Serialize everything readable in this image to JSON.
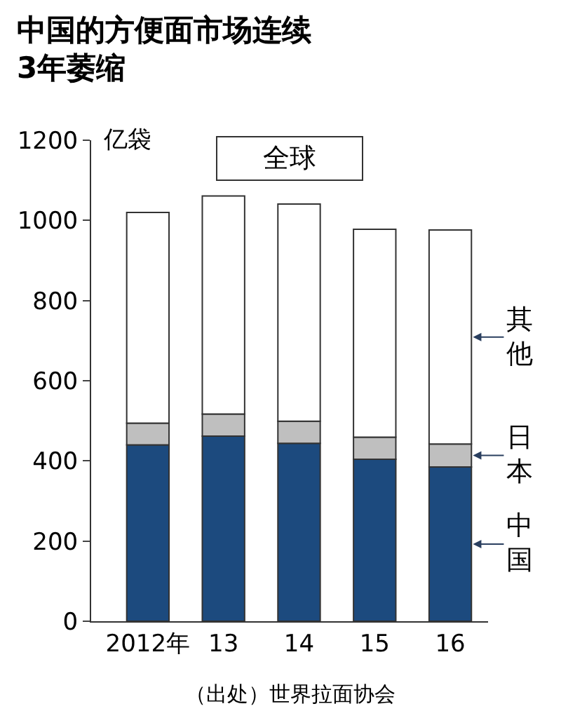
{
  "chart_data": {
    "type": "bar",
    "stacked": true,
    "title": "中国的方便面市场连续\n3年萎缩",
    "ylabel": "亿袋",
    "categories": [
      "2012年",
      "13",
      "14",
      "15",
      "16"
    ],
    "series": [
      {
        "name": "中国",
        "color": "#1c4a7e",
        "values": [
          440,
          462,
          444,
          404,
          385
        ]
      },
      {
        "name": "日本",
        "color": "#bfbfbf",
        "values": [
          54,
          55,
          55,
          55,
          57
        ]
      },
      {
        "name": "其他",
        "color": "#ffffff",
        "values": [
          526,
          544,
          542,
          519,
          534
        ]
      }
    ],
    "ylim": [
      0,
      1200
    ],
    "yticks": [
      0,
      200,
      400,
      600,
      800,
      1000,
      1200
    ],
    "annotations": [
      "全球",
      "（出处）世界拉面协会"
    ]
  }
}
